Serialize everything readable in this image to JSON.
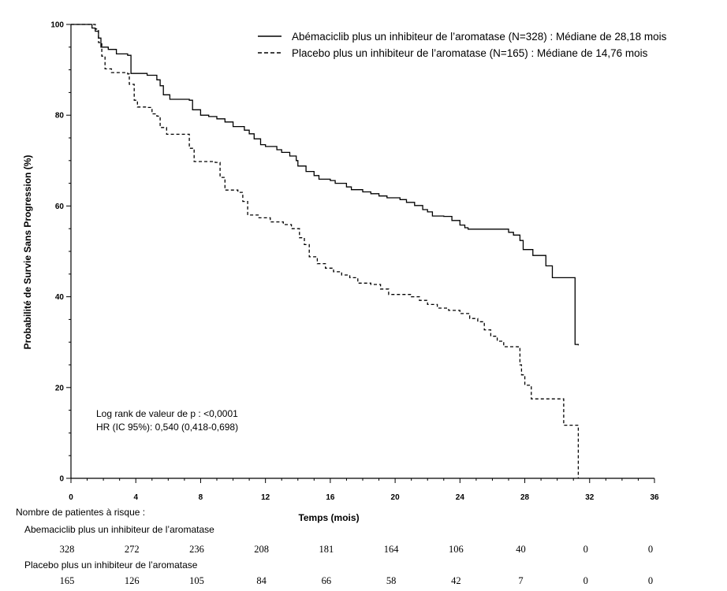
{
  "chart_data": {
    "type": "line",
    "xlabel": "Temps (mois)",
    "ylabel": "Probabilité de Survie Sans Progression (%)",
    "xlim": [
      0,
      36
    ],
    "ylim": [
      0,
      100
    ],
    "x_ticks": [
      0,
      4,
      8,
      12,
      16,
      20,
      24,
      28,
      32,
      36
    ],
    "y_ticks": [
      0,
      20,
      40,
      60,
      80,
      100
    ],
    "grid": false,
    "legend_position": "top-right",
    "series": [
      {
        "name": "Abémaciclib plus un inhibiteur de l’aromatase (N=328) : Médiane de 28,18 mois",
        "line_style": "solid",
        "color": "#000000",
        "points": [
          [
            0,
            100
          ],
          [
            1.1,
            100
          ],
          [
            1.3,
            99.2
          ],
          [
            1.5,
            98.5
          ],
          [
            1.7,
            97
          ],
          [
            1.85,
            95
          ],
          [
            2.3,
            94.5
          ],
          [
            2.8,
            93.5
          ],
          [
            3.5,
            93.2
          ],
          [
            3.7,
            89.2
          ],
          [
            4.7,
            88.8
          ],
          [
            5.3,
            87.8
          ],
          [
            5.5,
            86.5
          ],
          [
            5.7,
            84.5
          ],
          [
            6.1,
            83.5
          ],
          [
            7.3,
            83.3
          ],
          [
            7.5,
            81.2
          ],
          [
            8,
            80
          ],
          [
            8.5,
            79.7
          ],
          [
            9,
            79.2
          ],
          [
            9.5,
            78.5
          ],
          [
            10,
            77.5
          ],
          [
            10.7,
            76.7
          ],
          [
            11,
            75.9
          ],
          [
            11.3,
            74.8
          ],
          [
            11.7,
            73.5
          ],
          [
            12,
            73.1
          ],
          [
            12.7,
            72.4
          ],
          [
            13,
            71.8
          ],
          [
            13.5,
            71
          ],
          [
            13.9,
            70
          ],
          [
            14,
            68.8
          ],
          [
            14.5,
            67.6
          ],
          [
            15,
            66.7
          ],
          [
            15.3,
            65.9
          ],
          [
            16,
            65.6
          ],
          [
            16.3,
            65
          ],
          [
            17,
            64.2
          ],
          [
            17.3,
            63.6
          ],
          [
            18,
            63.1
          ],
          [
            18.5,
            62.7
          ],
          [
            19,
            62.2
          ],
          [
            19.5,
            61.8
          ],
          [
            20.3,
            61.4
          ],
          [
            20.7,
            60.8
          ],
          [
            21.2,
            60.1
          ],
          [
            21.7,
            59.2
          ],
          [
            22,
            58.7
          ],
          [
            22.3,
            57.8
          ],
          [
            23,
            57.7
          ],
          [
            23.5,
            56.8
          ],
          [
            24,
            55.8
          ],
          [
            24.3,
            55.2
          ],
          [
            24.5,
            54.9
          ],
          [
            27,
            54.2
          ],
          [
            27.3,
            53.6
          ],
          [
            27.7,
            52.4
          ],
          [
            27.9,
            50.4
          ],
          [
            28.5,
            49.1
          ],
          [
            29.3,
            46.8
          ],
          [
            29.7,
            44.2
          ],
          [
            31.1,
            44.2
          ],
          [
            31.1,
            29.5
          ],
          [
            31.3,
            29.3
          ]
        ]
      },
      {
        "name": "Placebo plus un inhibiteur de l’aromatase (N=165) :  Médiane de 14,76 mois",
        "line_style": "dashed",
        "color": "#000000",
        "points": [
          [
            0,
            100
          ],
          [
            1.2,
            100
          ],
          [
            1.5,
            99
          ],
          [
            1.7,
            96
          ],
          [
            1.9,
            93
          ],
          [
            2.1,
            90.2
          ],
          [
            2.5,
            89.4
          ],
          [
            3.5,
            89.1
          ],
          [
            3.6,
            86.8
          ],
          [
            3.9,
            83.3
          ],
          [
            4.1,
            81.8
          ],
          [
            4.7,
            81.7
          ],
          [
            5,
            80.3
          ],
          [
            5.3,
            79.8
          ],
          [
            5.5,
            77.3
          ],
          [
            5.9,
            75.8
          ],
          [
            7.2,
            75.8
          ],
          [
            7.3,
            72.7
          ],
          [
            7.6,
            69.8
          ],
          [
            8.9,
            69.6
          ],
          [
            9.2,
            66.3
          ],
          [
            9.5,
            63.5
          ],
          [
            10.3,
            63
          ],
          [
            10.6,
            61
          ],
          [
            10.9,
            58
          ],
          [
            11.6,
            57.4
          ],
          [
            12.3,
            56.5
          ],
          [
            13.1,
            55.9
          ],
          [
            13.6,
            55
          ],
          [
            14.1,
            53
          ],
          [
            14.4,
            51.5
          ],
          [
            14.7,
            48.8
          ],
          [
            15.2,
            47.3
          ],
          [
            15.7,
            46.3
          ],
          [
            16.2,
            45.5
          ],
          [
            16.7,
            44.8
          ],
          [
            17.2,
            44.2
          ],
          [
            17.7,
            43
          ],
          [
            18.5,
            42.7
          ],
          [
            19.1,
            41.7
          ],
          [
            19.6,
            40.5
          ],
          [
            21,
            40
          ],
          [
            21.5,
            39.2
          ],
          [
            22,
            38.3
          ],
          [
            22.6,
            37.5
          ],
          [
            23.3,
            37
          ],
          [
            24,
            36.3
          ],
          [
            24.6,
            35.2
          ],
          [
            25.1,
            34.5
          ],
          [
            25.5,
            32.7
          ],
          [
            25.9,
            31.3
          ],
          [
            26.3,
            30.2
          ],
          [
            26.7,
            29
          ],
          [
            27.6,
            28.9
          ],
          [
            27.7,
            25
          ],
          [
            27.8,
            22.8
          ],
          [
            28,
            20.5
          ],
          [
            28.4,
            17.5
          ],
          [
            30.1,
            17.5
          ],
          [
            30.4,
            11.7
          ],
          [
            31.3,
            11.7
          ],
          [
            31.3,
            0
          ]
        ]
      }
    ],
    "annotations": [
      "Log rank de valeur de p : <0,0001",
      "HR (IC 95%): 0,540 (0,418-0,698)"
    ],
    "risk_table": {
      "title": "Nombre de patientes à risque :",
      "time_points": [
        0,
        4,
        8,
        12,
        16,
        20,
        24,
        28,
        32,
        36
      ],
      "groups": [
        {
          "label": "Abemaciclib plus un inhibiteur de l’aromatase",
          "counts": [
            328,
            272,
            236,
            208,
            181,
            164,
            106,
            40,
            0,
            0
          ]
        },
        {
          "label": "Placebo plus un inhibiteur de l’aromatase",
          "counts": [
            165,
            126,
            105,
            84,
            66,
            58,
            42,
            7,
            0,
            0
          ]
        }
      ]
    }
  }
}
